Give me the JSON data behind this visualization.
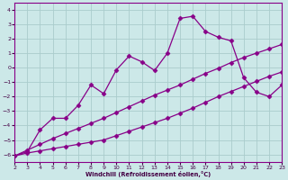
{
  "xlabel": "Windchill (Refroidissement éolien,°C)",
  "xlim": [
    2,
    23
  ],
  "ylim": [
    -6.5,
    4.5
  ],
  "xticks": [
    2,
    3,
    4,
    5,
    6,
    7,
    8,
    9,
    10,
    11,
    12,
    13,
    14,
    15,
    16,
    17,
    18,
    19,
    20,
    21,
    22,
    23
  ],
  "yticks": [
    -6,
    -5,
    -4,
    -3,
    -2,
    -1,
    0,
    1,
    2,
    3,
    4
  ],
  "bg_color": "#cce8e8",
  "grid_color": "#aacccc",
  "line_color": "#880088",
  "line1_x": [
    2,
    3,
    4,
    5,
    6,
    7,
    8,
    9,
    10,
    11,
    12,
    13,
    14,
    15,
    16,
    17,
    18,
    19,
    20,
    21,
    22,
    23
  ],
  "line1_y": [
    -6.1,
    -5.9,
    -5.75,
    -5.6,
    -5.45,
    -5.3,
    -5.15,
    -5.0,
    -4.7,
    -4.4,
    -4.1,
    -3.8,
    -3.5,
    -3.15,
    -2.8,
    -2.4,
    -2.0,
    -1.65,
    -1.3,
    -0.95,
    -0.6,
    -0.3
  ],
  "line2_x": [
    2,
    3,
    4,
    5,
    6,
    7,
    8,
    9,
    10,
    11,
    12,
    13,
    14,
    15,
    16,
    17,
    18,
    19,
    20,
    21,
    22,
    23
  ],
  "line2_y": [
    -6.1,
    -5.7,
    -5.3,
    -4.9,
    -4.55,
    -4.2,
    -3.85,
    -3.5,
    -3.1,
    -2.7,
    -2.3,
    -1.9,
    -1.55,
    -1.2,
    -0.8,
    -0.4,
    -0.05,
    0.35,
    0.7,
    1.0,
    1.3,
    1.6
  ],
  "line3_x": [
    2,
    3,
    4,
    5,
    6,
    7,
    8,
    9,
    10,
    11,
    12,
    13,
    14,
    15,
    16,
    17,
    18,
    19,
    20,
    21,
    22,
    23
  ],
  "line3_y": [
    -6.1,
    -5.8,
    -4.3,
    -3.5,
    -3.5,
    -2.6,
    -1.2,
    -1.8,
    -0.15,
    0.8,
    0.4,
    -0.2,
    1.0,
    3.4,
    3.55,
    2.5,
    2.1,
    1.85,
    -0.7,
    -1.7,
    -2.0,
    -1.2
  ]
}
